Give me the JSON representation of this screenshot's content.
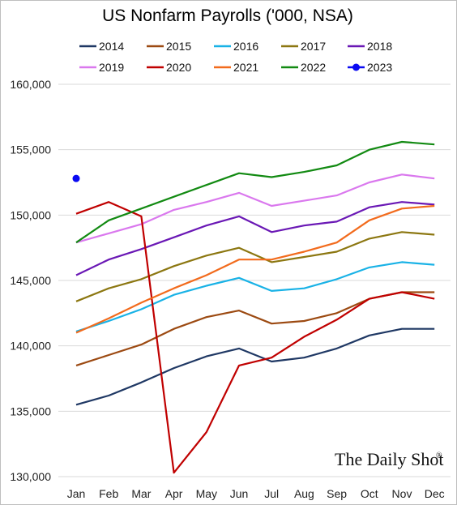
{
  "chart_data": {
    "type": "line",
    "title": "US Nonfarm Payrolls ('000, NSA)",
    "categories": [
      "Jan",
      "Feb",
      "Mar",
      "Apr",
      "May",
      "Jun",
      "Jul",
      "Aug",
      "Sep",
      "Oct",
      "Nov",
      "Dec"
    ],
    "ylim": [
      130000,
      160000
    ],
    "yticks": [
      130000,
      135000,
      140000,
      145000,
      150000,
      155000,
      160000
    ],
    "ytick_labels": [
      "130,000",
      "135,000",
      "140,000",
      "145,000",
      "150,000",
      "155,000",
      "160,000"
    ],
    "grid": true,
    "legend_position": "top",
    "series": [
      {
        "name": "2014",
        "color": "#1f3864",
        "values": [
          135500,
          136200,
          137200,
          138300,
          139200,
          139800,
          138800,
          139100,
          139800,
          140800,
          141300,
          141300
        ]
      },
      {
        "name": "2015",
        "color": "#9c4a12",
        "values": [
          138500,
          139300,
          140100,
          141300,
          142200,
          142700,
          141700,
          141900,
          142500,
          143600,
          144100,
          144100
        ]
      },
      {
        "name": "2016",
        "color": "#19b2e6",
        "values": [
          141100,
          141900,
          142800,
          143900,
          144600,
          145200,
          144200,
          144400,
          145100,
          146000,
          146400,
          146200
        ]
      },
      {
        "name": "2017",
        "color": "#8c7711",
        "values": [
          143400,
          144400,
          145100,
          146100,
          146900,
          147500,
          146400,
          146800,
          147200,
          148200,
          148700,
          148500
        ]
      },
      {
        "name": "2018",
        "color": "#6a18b5",
        "values": [
          145400,
          146600,
          147400,
          148300,
          149200,
          149900,
          148700,
          149200,
          149500,
          150600,
          151000,
          150800
        ]
      },
      {
        "name": "2019",
        "color": "#da78ee",
        "values": [
          147900,
          148600,
          149300,
          150400,
          151000,
          151700,
          150700,
          151100,
          151500,
          152500,
          153100,
          152800
        ]
      },
      {
        "name": "2020",
        "color": "#c00000",
        "values": [
          150100,
          151000,
          149900,
          130300,
          133400,
          138500,
          139100,
          140700,
          142000,
          143600,
          144100,
          143600
        ]
      },
      {
        "name": "2021",
        "color": "#f26b1d",
        "values": [
          141000,
          142100,
          143300,
          144400,
          145400,
          146600,
          146600,
          147200,
          147900,
          149600,
          150500,
          150700
        ]
      },
      {
        "name": "2022",
        "color": "#128a12",
        "values": [
          147900,
          149600,
          150500,
          151400,
          152300,
          153200,
          152900,
          153300,
          153800,
          155000,
          155600,
          155400
        ]
      },
      {
        "name": "2023",
        "color": "#0a0af2",
        "marker": "circle",
        "values": [
          152800,
          null,
          null,
          null,
          null,
          null,
          null,
          null,
          null,
          null,
          null,
          null
        ]
      }
    ]
  },
  "watermark": {
    "text": "The Daily Shot",
    "mark": "®"
  }
}
